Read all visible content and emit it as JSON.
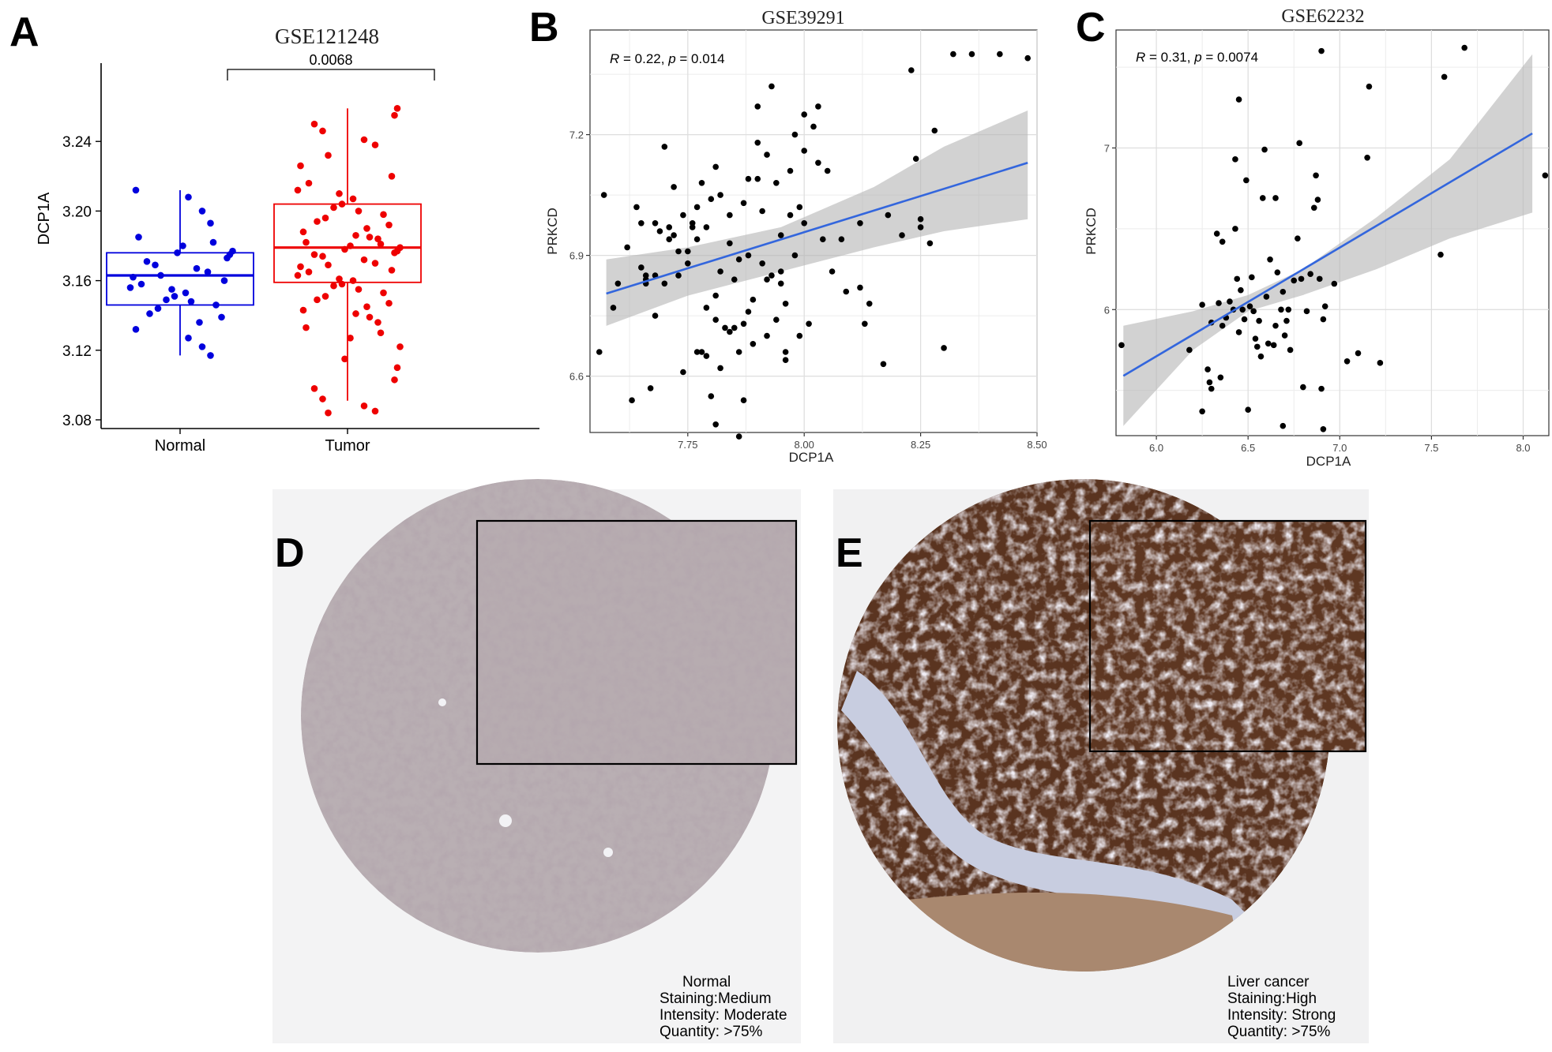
{
  "panels": {
    "A": {
      "letter": "A",
      "chart_data": {
        "type": "box",
        "title": "GSE121248",
        "xlabel": "",
        "ylabel": "DCP1A",
        "categories": [
          "Normal",
          "Tumor"
        ],
        "yticks": [
          "3.08",
          "3.12",
          "3.16",
          "3.20",
          "3.24"
        ],
        "ylim": [
          3.075,
          3.285
        ],
        "significance": "0.0068",
        "colors": {
          "Normal": "#0000dd",
          "Tumor": "#ee0000"
        },
        "boxes": [
          {
            "name": "Normal",
            "min": 3.117,
            "q1": 3.146,
            "median": 3.163,
            "q3": 3.176,
            "max": 3.212
          },
          {
            "name": "Tumor",
            "min": 3.091,
            "q1": 3.159,
            "median": 3.179,
            "q3": 3.204,
            "max": 3.259
          }
        ],
        "points": {
          "Normal": [
            3.212,
            3.208,
            3.2,
            3.193,
            3.185,
            3.182,
            3.18,
            3.177,
            3.176,
            3.175,
            3.173,
            3.171,
            3.169,
            3.167,
            3.165,
            3.163,
            3.162,
            3.16,
            3.158,
            3.156,
            3.155,
            3.153,
            3.151,
            3.149,
            3.148,
            3.146,
            3.144,
            3.141,
            3.139,
            3.136,
            3.132,
            3.127,
            3.122,
            3.117
          ],
          "Tumor": [
            3.259,
            3.255,
            3.25,
            3.246,
            3.241,
            3.238,
            3.232,
            3.226,
            3.22,
            3.216,
            3.212,
            3.21,
            3.207,
            3.204,
            3.202,
            3.2,
            3.198,
            3.196,
            3.194,
            3.192,
            3.19,
            3.188,
            3.186,
            3.185,
            3.184,
            3.182,
            3.181,
            3.18,
            3.179,
            3.178,
            3.177,
            3.176,
            3.175,
            3.174,
            3.172,
            3.17,
            3.169,
            3.168,
            3.166,
            3.165,
            3.163,
            3.161,
            3.16,
            3.158,
            3.157,
            3.155,
            3.153,
            3.151,
            3.149,
            3.147,
            3.145,
            3.143,
            3.141,
            3.139,
            3.136,
            3.133,
            3.13,
            3.127,
            3.122,
            3.115,
            3.11,
            3.103,
            3.098,
            3.092,
            3.088,
            3.085,
            3.084
          ]
        }
      }
    },
    "B": {
      "letter": "B",
      "chart_data": {
        "type": "scatter",
        "title": "GSE39291",
        "xlabel": "DCP1A",
        "ylabel": "PRKCD",
        "xticks": [
          "7.75",
          "8.00",
          "8.25",
          "8.50"
        ],
        "yticks": [
          "6.6",
          "6.9",
          "7.2"
        ],
        "xlim": [
          7.54,
          8.5
        ],
        "ylim": [
          6.46,
          7.46
        ],
        "annotation": {
          "r_label": "R",
          "r_value": " = 0.22, ",
          "p_label": "p",
          "p_value": " = 0.014"
        },
        "fit": {
          "x0": 7.575,
          "y0": 6.805,
          "x1": 8.48,
          "y1": 7.13
        },
        "ci_upper": [
          [
            7.575,
            6.89
          ],
          [
            7.75,
            6.92
          ],
          [
            7.95,
            6.97
          ],
          [
            8.15,
            7.07
          ],
          [
            8.3,
            7.17
          ],
          [
            8.48,
            7.26
          ]
        ],
        "ci_lower": [
          [
            7.575,
            6.725
          ],
          [
            7.75,
            6.8
          ],
          [
            7.95,
            6.86
          ],
          [
            8.15,
            6.92
          ],
          [
            8.3,
            6.96
          ],
          [
            8.48,
            6.99
          ]
        ],
        "points": [
          [
            7.56,
            6.66
          ],
          [
            7.57,
            7.05
          ],
          [
            7.59,
            6.77
          ],
          [
            7.6,
            6.83
          ],
          [
            7.62,
            6.92
          ],
          [
            7.63,
            6.54
          ],
          [
            7.64,
            7.02
          ],
          [
            7.65,
            6.98
          ],
          [
            7.65,
            6.87
          ],
          [
            7.66,
            6.84
          ],
          [
            7.66,
            6.83
          ],
          [
            7.67,
            6.57
          ],
          [
            7.68,
            6.85
          ],
          [
            7.68,
            6.75
          ],
          [
            7.69,
            6.96
          ],
          [
            7.7,
            7.17
          ],
          [
            7.7,
            6.83
          ],
          [
            7.71,
            6.97
          ],
          [
            7.72,
            7.07
          ],
          [
            7.72,
            6.95
          ],
          [
            7.73,
            6.85
          ],
          [
            7.74,
            6.61
          ],
          [
            7.74,
            7.0
          ],
          [
            7.75,
            6.91
          ],
          [
            7.75,
            6.88
          ],
          [
            7.76,
            6.97
          ],
          [
            7.76,
            6.98
          ],
          [
            7.77,
            6.94
          ],
          [
            7.77,
            7.02
          ],
          [
            7.78,
            6.66
          ],
          [
            7.78,
            7.08
          ],
          [
            7.79,
            6.97
          ],
          [
            7.79,
            6.65
          ],
          [
            7.8,
            6.55
          ],
          [
            7.8,
            7.04
          ],
          [
            7.81,
            7.12
          ],
          [
            7.81,
            6.74
          ],
          [
            7.82,
            7.05
          ],
          [
            7.82,
            6.86
          ],
          [
            7.83,
            6.72
          ],
          [
            7.84,
            6.71
          ],
          [
            7.84,
            7.0
          ],
          [
            7.85,
            6.84
          ],
          [
            7.85,
            6.72
          ],
          [
            7.86,
            6.66
          ],
          [
            7.86,
            6.89
          ],
          [
            7.87,
            6.73
          ],
          [
            7.87,
            7.03
          ],
          [
            7.88,
            6.76
          ],
          [
            7.88,
            7.09
          ],
          [
            7.89,
            6.79
          ],
          [
            7.89,
            6.68
          ],
          [
            7.9,
            7.18
          ],
          [
            7.9,
            7.09
          ],
          [
            7.91,
            6.88
          ],
          [
            7.92,
            6.7
          ],
          [
            7.92,
            7.15
          ],
          [
            7.93,
            6.85
          ],
          [
            7.93,
            7.32
          ],
          [
            7.94,
            6.74
          ],
          [
            7.94,
            7.08
          ],
          [
            7.95,
            6.95
          ],
          [
            7.95,
            6.86
          ],
          [
            7.96,
            6.78
          ],
          [
            7.96,
            6.66
          ],
          [
            7.97,
            7.0
          ],
          [
            7.97,
            7.11
          ],
          [
            7.98,
            6.9
          ],
          [
            7.98,
            7.2
          ],
          [
            7.99,
            6.7
          ],
          [
            7.99,
            7.02
          ],
          [
            8.0,
            7.16
          ],
          [
            8.0,
            6.98
          ],
          [
            8.01,
            6.73
          ],
          [
            8.02,
            7.22
          ],
          [
            8.03,
            7.13
          ],
          [
            8.04,
            6.94
          ],
          [
            8.06,
            6.86
          ],
          [
            8.08,
            6.94
          ],
          [
            8.09,
            6.81
          ],
          [
            8.12,
            6.98
          ],
          [
            8.13,
            6.73
          ],
          [
            8.14,
            6.78
          ],
          [
            8.18,
            7.0
          ],
          [
            8.21,
            6.95
          ],
          [
            8.23,
            7.36
          ],
          [
            8.24,
            7.14
          ],
          [
            8.25,
            6.97
          ],
          [
            8.27,
            6.93
          ],
          [
            8.28,
            7.21
          ],
          [
            8.3,
            6.67
          ],
          [
            8.32,
            7.4
          ],
          [
            8.36,
            7.4
          ],
          [
            8.42,
            7.4
          ],
          [
            8.48,
            7.39
          ],
          [
            7.79,
            6.77
          ],
          [
            7.82,
            6.62
          ],
          [
            7.77,
            6.66
          ],
          [
            7.81,
            6.8
          ],
          [
            7.86,
            6.45
          ],
          [
            7.95,
            6.83
          ],
          [
            7.91,
            7.01
          ],
          [
            7.71,
            6.94
          ],
          [
            7.84,
            6.93
          ],
          [
            7.88,
            6.9
          ],
          [
            7.68,
            6.98
          ],
          [
            7.66,
            6.85
          ],
          [
            7.92,
            6.84
          ],
          [
            8.03,
            7.27
          ],
          [
            8.12,
            6.82
          ],
          [
            7.73,
            6.91
          ],
          [
            8.17,
            6.63
          ],
          [
            7.9,
            7.27
          ],
          [
            8.0,
            7.25
          ],
          [
            7.81,
            6.48
          ],
          [
            8.05,
            7.11
          ],
          [
            7.96,
            6.64
          ],
          [
            7.87,
            6.54
          ],
          [
            8.25,
            6.99
          ]
        ]
      }
    },
    "C": {
      "letter": "C",
      "chart_data": {
        "type": "scatter",
        "title": "GSE62232",
        "xlabel": "DCP1A",
        "ylabel": "PRKCD",
        "xticks": [
          "6.0",
          "6.5",
          "7.0",
          "7.5",
          "8.0"
        ],
        "yticks": [
          "6",
          "7"
        ],
        "xlim": [
          5.78,
          8.14
        ],
        "ylim": [
          5.22,
          7.73
        ],
        "annotation": {
          "r_label": "R",
          "r_value": " = 0.31, ",
          "p_label": "p",
          "p_value": " = 0.0074"
        },
        "fit": {
          "x0": 5.82,
          "y0": 5.59,
          "x1": 8.05,
          "y1": 7.09
        },
        "ci_upper": [
          [
            5.82,
            5.9
          ],
          [
            6.2,
            5.99
          ],
          [
            6.5,
            6.09
          ],
          [
            6.8,
            6.25
          ],
          [
            7.2,
            6.57
          ],
          [
            7.6,
            6.93
          ],
          [
            8.05,
            7.58
          ]
        ],
        "ci_lower": [
          [
            5.82,
            5.28
          ],
          [
            6.2,
            5.75
          ],
          [
            6.5,
            5.99
          ],
          [
            6.8,
            6.09
          ],
          [
            7.2,
            6.25
          ],
          [
            7.6,
            6.44
          ],
          [
            8.05,
            6.6
          ]
        ],
        "points": [
          [
            5.81,
            5.78
          ],
          [
            6.18,
            5.75
          ],
          [
            6.25,
            6.03
          ],
          [
            6.25,
            5.37
          ],
          [
            6.28,
            5.63
          ],
          [
            6.29,
            5.55
          ],
          [
            6.3,
            5.51
          ],
          [
            6.3,
            5.92
          ],
          [
            6.33,
            6.47
          ],
          [
            6.34,
            6.04
          ],
          [
            6.35,
            5.58
          ],
          [
            6.36,
            5.9
          ],
          [
            6.36,
            6.42
          ],
          [
            6.4,
            6.05
          ],
          [
            6.42,
            6.0
          ],
          [
            6.43,
            6.5
          ],
          [
            6.43,
            6.93
          ],
          [
            6.44,
            6.19
          ],
          [
            6.45,
            7.3
          ],
          [
            6.46,
            6.12
          ],
          [
            6.47,
            6.0
          ],
          [
            6.48,
            5.94
          ],
          [
            6.49,
            6.8
          ],
          [
            6.5,
            5.38
          ],
          [
            6.51,
            6.02
          ],
          [
            6.52,
            6.2
          ],
          [
            6.54,
            5.82
          ],
          [
            6.55,
            5.77
          ],
          [
            6.56,
            5.93
          ],
          [
            6.57,
            5.71
          ],
          [
            6.58,
            6.69
          ],
          [
            6.59,
            6.99
          ],
          [
            6.6,
            6.08
          ],
          [
            6.61,
            5.79
          ],
          [
            6.62,
            6.31
          ],
          [
            6.64,
            5.78
          ],
          [
            6.65,
            6.69
          ],
          [
            6.66,
            6.23
          ],
          [
            6.68,
            6.0
          ],
          [
            6.69,
            5.28
          ],
          [
            6.7,
            5.84
          ],
          [
            6.71,
            5.93
          ],
          [
            6.72,
            6.0
          ],
          [
            6.75,
            6.18
          ],
          [
            6.77,
            6.44
          ],
          [
            6.78,
            7.03
          ],
          [
            6.79,
            6.19
          ],
          [
            6.8,
            5.52
          ],
          [
            6.82,
            5.99
          ],
          [
            6.84,
            6.22
          ],
          [
            6.86,
            6.63
          ],
          [
            6.87,
            6.83
          ],
          [
            6.88,
            6.68
          ],
          [
            6.89,
            6.19
          ],
          [
            6.9,
            5.51
          ],
          [
            6.9,
            7.6
          ],
          [
            6.91,
            5.26
          ],
          [
            6.91,
            5.94
          ],
          [
            6.92,
            6.02
          ],
          [
            7.04,
            5.68
          ],
          [
            7.1,
            5.73
          ],
          [
            7.15,
            6.94
          ],
          [
            7.16,
            7.38
          ],
          [
            7.22,
            5.67
          ],
          [
            7.55,
            6.34
          ],
          [
            7.57,
            7.44
          ],
          [
            7.68,
            7.62
          ],
          [
            8.12,
            6.83
          ],
          [
            6.97,
            6.16
          ],
          [
            6.53,
            5.99
          ],
          [
            6.65,
            5.9
          ],
          [
            6.73,
            5.75
          ],
          [
            6.45,
            5.86
          ],
          [
            6.38,
            5.95
          ],
          [
            6.69,
            6.11
          ]
        ]
      }
    },
    "D": {
      "letter": "D",
      "caption": [
        "Normal",
        "Staining:Medium",
        "Intensity: Moderate",
        "Quantity: >75%"
      ]
    },
    "E": {
      "letter": "E",
      "caption": [
        "Liver cancer",
        "Staining:High",
        "Intensity: Strong",
        "Quantity: >75%"
      ]
    }
  }
}
